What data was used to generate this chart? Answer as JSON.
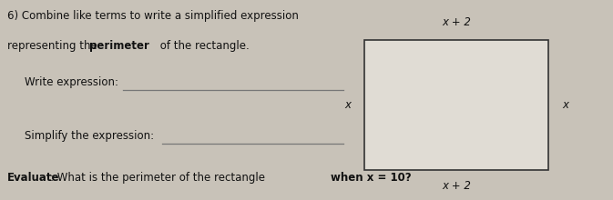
{
  "bg_color": "#c8c2b8",
  "paper_color": "#d8d4cc",
  "rect_fill": "#e0dcd4",
  "title_line1": "6) Combine like terms to write a simplified expression",
  "title_line2_pre": "representing the ",
  "title_line2_bold": "perimeter",
  "title_line2_post": " of the rectangle.",
  "write_label": "Write expression:",
  "simplify_label": "Simplify the expression:",
  "evaluate_pre": "Evaluate",
  "evaluate_colon": ":",
  "evaluate_post": " What is the perimeter of the rectangle ",
  "evaluate_bold": "when x = 10?",
  "rect_top_label": "x + 2",
  "rect_bottom_label": "x + 2",
  "rect_left_label": "x",
  "rect_right_label": "x",
  "text_color": "#111111",
  "rect_line_color": "#333333",
  "underline_color": "#777777",
  "font_size_main": 8.5,
  "font_size_rect": 8.5
}
